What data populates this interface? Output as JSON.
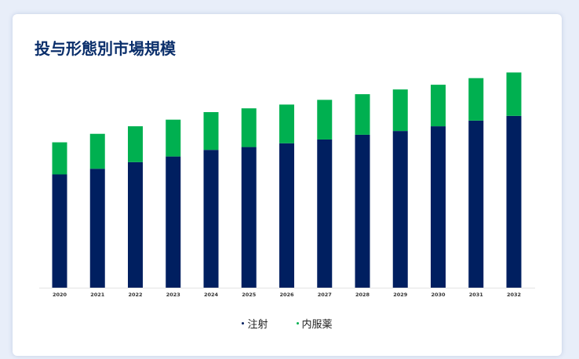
{
  "title": "投与形態別市場規模",
  "colors": {
    "injection": "#001f60",
    "oral": "#00b050",
    "axis": "#e3e3e3",
    "tick_text": "#333333"
  },
  "chart_data": {
    "type": "bar",
    "stacked": true,
    "title": "投与形態別市場規模",
    "xlabel": "",
    "ylabel": "",
    "categories": [
      "2020",
      "2021",
      "2022",
      "2023",
      "2024",
      "2025",
      "2026",
      "2027",
      "2028",
      "2029",
      "2030",
      "2031",
      "2032"
    ],
    "series": [
      {
        "name": "注射",
        "color": "#001f60",
        "values": [
          120,
          126,
          133,
          139,
          146,
          149,
          153,
          157,
          162,
          166,
          171,
          177,
          182
        ]
      },
      {
        "name": "内服薬",
        "color": "#00b050",
        "values": [
          34,
          37,
          38,
          39,
          40,
          41,
          41,
          42,
          43,
          44,
          44,
          45,
          46
        ]
      }
    ],
    "ylim": [
      0,
      240
    ],
    "grid": false,
    "legend": "bottom"
  }
}
